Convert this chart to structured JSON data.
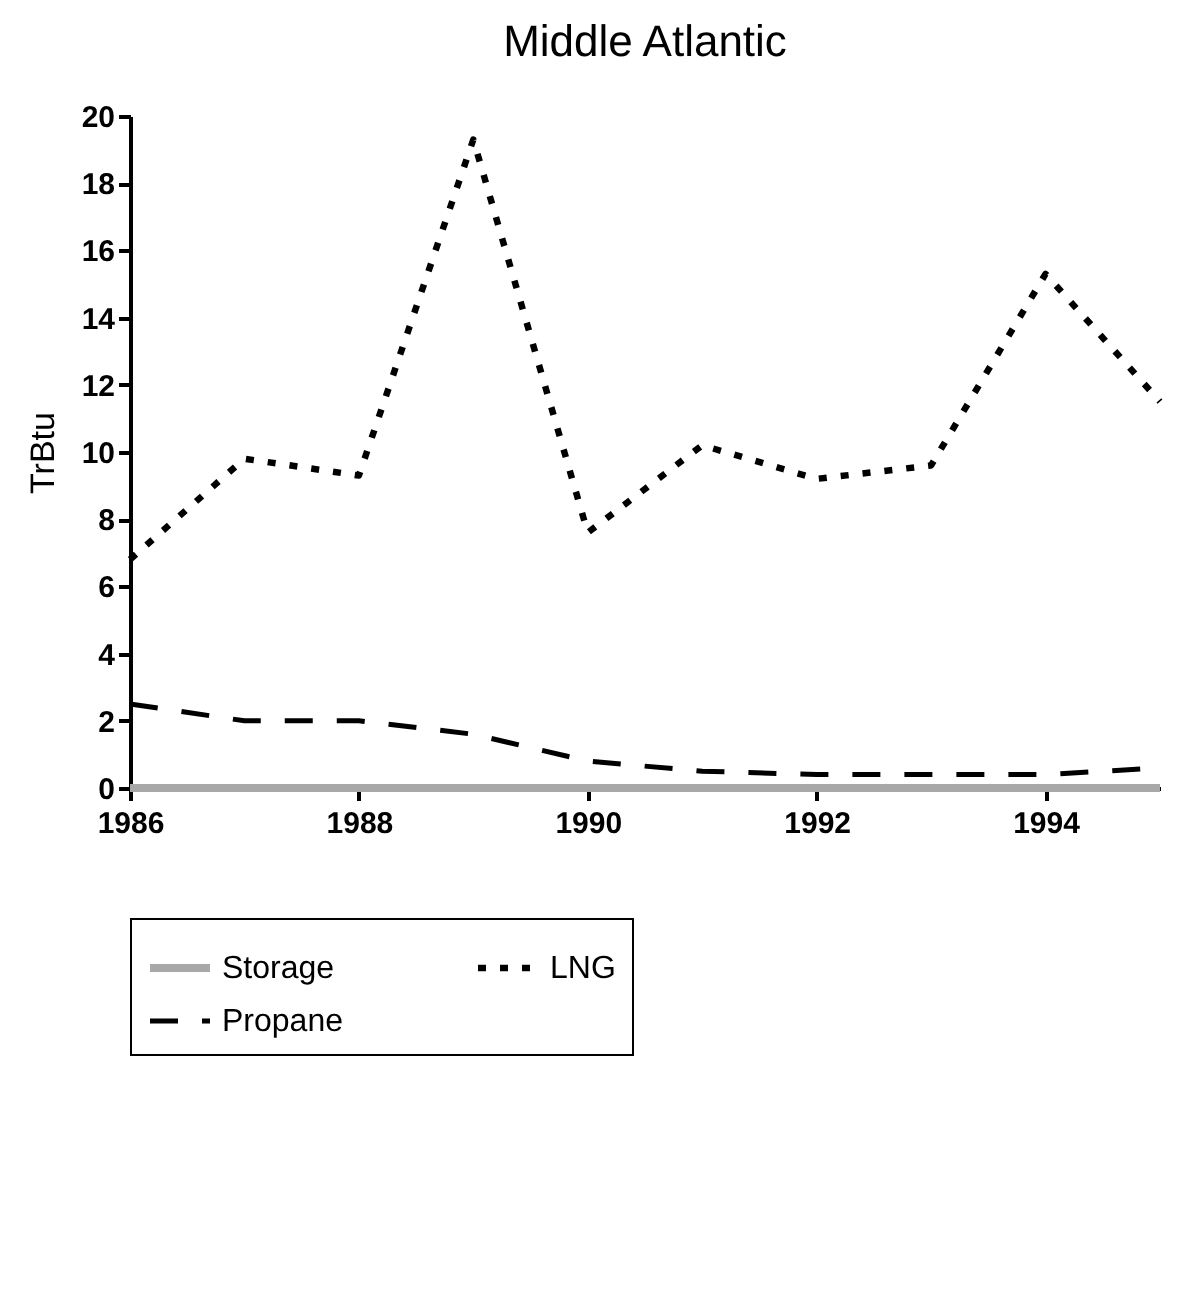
{
  "chart_data": {
    "type": "line",
    "title": "Middle Atlantic",
    "ylabel": "TrBtu",
    "x": [
      1986,
      1987,
      1988,
      1989,
      1990,
      1991,
      1992,
      1993,
      1994,
      1995
    ],
    "series": [
      {
        "name": "Storage",
        "color": "#a8a8a8",
        "line_style": "solid",
        "values": [
          0,
          0,
          0,
          0,
          0,
          0,
          0,
          0,
          0,
          0
        ]
      },
      {
        "name": "LNG",
        "color": "#000000",
        "line_style": "dotted",
        "values": [
          6.8,
          9.8,
          9.3,
          19.3,
          7.6,
          10.2,
          9.2,
          9.6,
          15.3,
          11.5
        ]
      },
      {
        "name": "Propane",
        "color": "#000000",
        "line_style": "dashed",
        "values": [
          2.5,
          2.0,
          2.0,
          1.6,
          0.8,
          0.5,
          0.4,
          0.4,
          0.4,
          0.6
        ]
      }
    ],
    "xlim": [
      1986,
      1995
    ],
    "xticks": [
      1986,
      1988,
      1990,
      1992,
      1994
    ],
    "ylim": [
      0,
      20
    ],
    "yticks": [
      0,
      2,
      4,
      6,
      8,
      10,
      12,
      14,
      16,
      18,
      20
    ],
    "grid": false,
    "legend": "bottom",
    "marker": "none"
  }
}
